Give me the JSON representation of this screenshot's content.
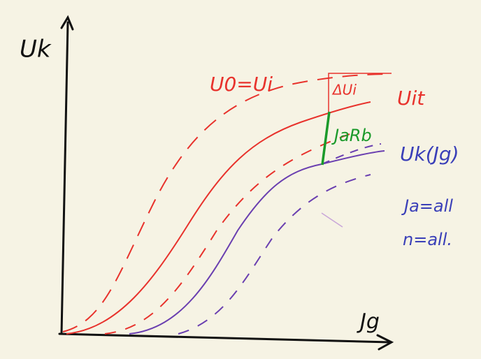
{
  "axes": {
    "y_label": "Uk",
    "x_label": "Jg"
  },
  "labels": {
    "u0_ui": "U0=Ui",
    "uit": "Uit",
    "delta_ui": "ΔUi",
    "ja_rb": "JaRb",
    "uk_jg": "Uk(Jg)",
    "ja_all": "Ja=all",
    "n_all": "n=all."
  }
}
